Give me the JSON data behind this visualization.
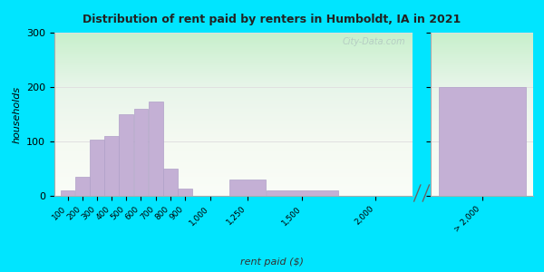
{
  "title": "Distribution of rent paid by renters in Humboldt, IA in 2021",
  "xlabel": "rent paid ($)",
  "ylabel": "households",
  "background_outer": "#00e5ff",
  "bar_color": "#c4b0d5",
  "bar_edge_color": "#b0a0c8",
  "values_main": [
    10,
    35,
    103,
    110,
    150,
    160,
    173,
    50,
    13,
    0,
    30,
    10,
    0
  ],
  "bar_lefts": [
    100,
    200,
    300,
    400,
    500,
    600,
    700,
    800,
    900,
    1000,
    1250,
    1500,
    2000
  ],
  "bar_widths": [
    100,
    100,
    100,
    100,
    100,
    100,
    100,
    100,
    100,
    250,
    250,
    500,
    500
  ],
  "value_gt2000": 200,
  "tick_labels_main": [
    "100",
    "200",
    "300",
    "400",
    "500",
    "600",
    "700",
    "800",
    "900",
    "1,000",
    "1,250",
    "1,500",
    "2,000"
  ],
  "tick_label_gt2000": "> 2,000",
  "ylim": [
    0,
    300
  ],
  "yticks": [
    0,
    100,
    200,
    300
  ],
  "watermark": "City-Data.com",
  "bg_colors": [
    "#b8f0d0",
    "#f0f8e8",
    "#f8faf0"
  ],
  "grid_color": "#e0e0e0"
}
